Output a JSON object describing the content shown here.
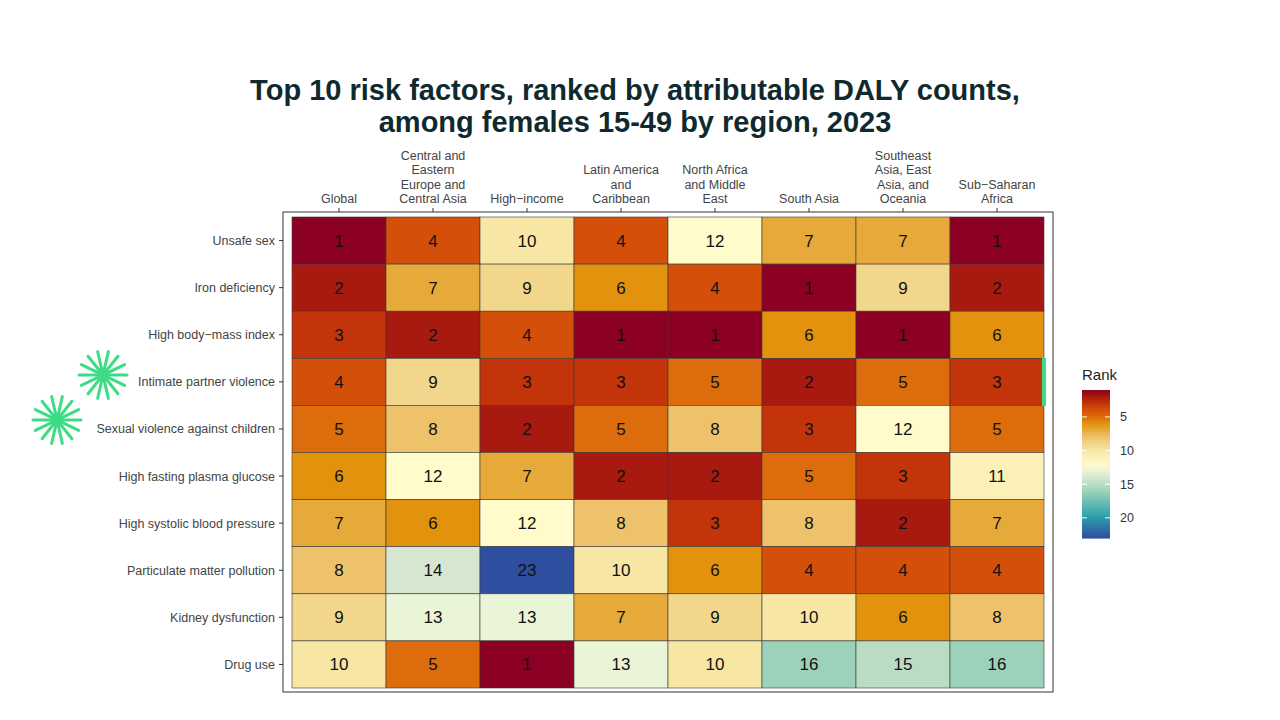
{
  "chart_data": {
    "type": "heatmap",
    "title": "Top 10 risk factors, ranked by attributable DALY counts, among females 15-49 by region, 2023",
    "categories": [
      "Global",
      "Central and Eastern Europe and Central Asia",
      "High−income",
      "Latin America and Caribbean",
      "North Africa and Middle East",
      "South Asia",
      "Southeast Asia, East Asia, and Oceania",
      "Sub−Saharan Africa"
    ],
    "row_categories": [
      "Unsafe sex",
      "Iron deficiency",
      "High body−mass index",
      "Intimate partner violence",
      "Sexual violence against children",
      "High fasting plasma glucose",
      "High systolic blood pressure",
      "Particulate matter pollution",
      "Kidney dysfunction",
      "Drug use"
    ],
    "cells": [
      [
        1,
        4,
        10,
        4,
        12,
        7,
        7,
        1
      ],
      [
        2,
        7,
        9,
        6,
        4,
        1,
        9,
        2
      ],
      [
        3,
        2,
        4,
        1,
        1,
        6,
        1,
        6
      ],
      [
        4,
        9,
        3,
        3,
        5,
        2,
        5,
        3
      ],
      [
        5,
        8,
        2,
        5,
        8,
        3,
        12,
        5
      ],
      [
        6,
        12,
        7,
        2,
        2,
        5,
        3,
        11
      ],
      [
        7,
        6,
        12,
        8,
        3,
        8,
        2,
        7
      ],
      [
        8,
        14,
        23,
        10,
        6,
        4,
        4,
        4
      ],
      [
        9,
        13,
        13,
        7,
        9,
        10,
        6,
        8
      ],
      [
        10,
        5,
        1,
        13,
        10,
        16,
        15,
        16
      ]
    ],
    "data_labels": true,
    "colorbar": {
      "title": "Rank",
      "range": [
        1,
        23
      ],
      "ticks": [
        5,
        10,
        15,
        20
      ]
    }
  }
}
